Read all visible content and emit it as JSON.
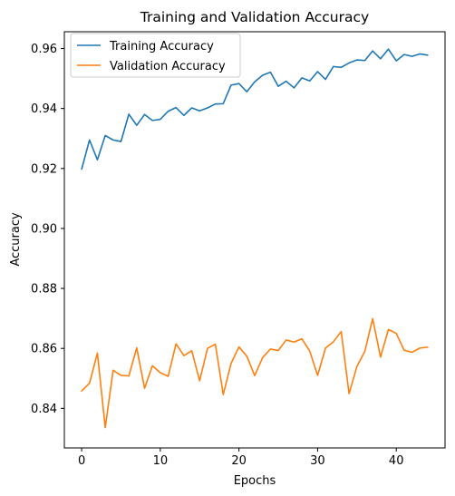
{
  "chart_data": {
    "type": "line",
    "title": "Training and Validation Accuracy",
    "xlabel": "Epochs",
    "ylabel": "Accuracy",
    "xlim": [
      -2.2,
      46.2
    ],
    "ylim": [
      0.8268,
      0.9656
    ],
    "xticks": [
      0,
      10,
      20,
      30,
      40
    ],
    "yticks": [
      0.84,
      0.86,
      0.88,
      0.9,
      0.92,
      0.94,
      0.96
    ],
    "xtick_labels": [
      "0",
      "10",
      "20",
      "30",
      "40"
    ],
    "ytick_labels": [
      "0.84",
      "0.86",
      "0.88",
      "0.90",
      "0.92",
      "0.94",
      "0.96"
    ],
    "grid": false,
    "legend_position": "upper-left",
    "x": [
      0,
      1,
      2,
      3,
      4,
      5,
      6,
      7,
      8,
      9,
      10,
      11,
      12,
      13,
      14,
      15,
      16,
      17,
      18,
      19,
      20,
      21,
      22,
      23,
      24,
      25,
      26,
      27,
      28,
      29,
      30,
      31,
      32,
      33,
      34,
      35,
      36,
      37,
      38,
      39,
      40,
      41,
      42,
      43,
      44
    ],
    "series": [
      {
        "name": "Training Accuracy",
        "color": "#1f77b4",
        "values": [
          0.9198,
          0.9295,
          0.9229,
          0.931,
          0.9295,
          0.929,
          0.9381,
          0.9344,
          0.938,
          0.936,
          0.9364,
          0.9391,
          0.9403,
          0.9377,
          0.9402,
          0.9392,
          0.9402,
          0.9415,
          0.9416,
          0.9478,
          0.9483,
          0.9456,
          0.9489,
          0.9511,
          0.9521,
          0.9474,
          0.9491,
          0.9469,
          0.9502,
          0.9492,
          0.9523,
          0.9497,
          0.954,
          0.9537,
          0.9552,
          0.9562,
          0.956,
          0.9592,
          0.9566,
          0.9598,
          0.9559,
          0.958,
          0.9574,
          0.9582,
          0.9578
        ]
      },
      {
        "name": "Validation Accuracy",
        "color": "#ff7f0e",
        "values": [
          0.8458,
          0.8484,
          0.8584,
          0.8336,
          0.8527,
          0.851,
          0.8508,
          0.8602,
          0.8467,
          0.8542,
          0.8519,
          0.8507,
          0.8615,
          0.8576,
          0.8592,
          0.8492,
          0.86,
          0.8614,
          0.8446,
          0.855,
          0.8605,
          0.8574,
          0.8509,
          0.8569,
          0.8598,
          0.8593,
          0.8628,
          0.8621,
          0.8632,
          0.8591,
          0.851,
          0.8601,
          0.8622,
          0.8656,
          0.8449,
          0.854,
          0.859,
          0.8699,
          0.8571,
          0.8663,
          0.865,
          0.8594,
          0.8587,
          0.8601,
          0.8604
        ]
      }
    ]
  }
}
